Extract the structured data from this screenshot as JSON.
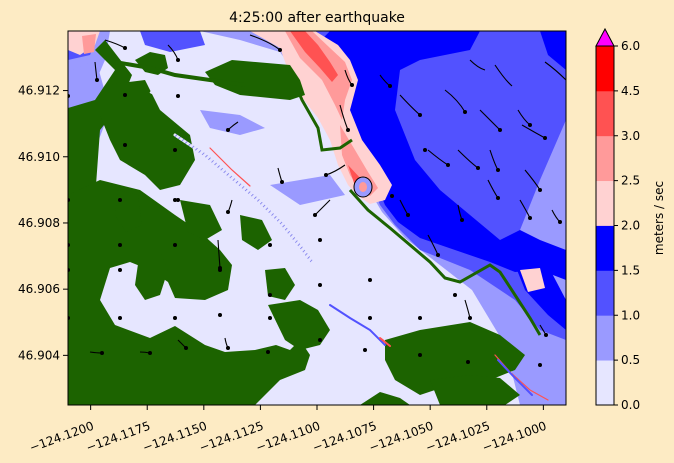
{
  "chart_data": {
    "type": "heatmap",
    "title": "4:25:00 after earthquake",
    "xlim": [
      -124.121,
      -124.099
    ],
    "ylim": [
      46.9025,
      46.9138
    ],
    "x_ticks": [
      -124.12,
      -124.1175,
      -124.115,
      -124.1125,
      -124.11,
      -124.1075,
      -124.105,
      -124.1025,
      -124.1
    ],
    "x_tick_labels": [
      "−124.1200",
      "−124.1175",
      "−124.1150",
      "−124.1125",
      "−124.1100",
      "−124.1075",
      "−124.1050",
      "−124.1025",
      "−124.1000"
    ],
    "y_ticks": [
      46.904,
      46.906,
      46.908,
      46.91,
      46.912
    ],
    "y_tick_labels": [
      "46.904",
      "46.906",
      "46.908",
      "46.910",
      "46.912"
    ],
    "colorbar": {
      "label": "meters / sec",
      "levels": [
        0.0,
        0.5,
        1.0,
        1.5,
        2.0,
        2.5,
        3.0,
        4.5,
        6.0
      ],
      "tick_labels": [
        "0.0",
        "0.5",
        "1.0",
        "1.5",
        "2.0",
        "2.5",
        "3.0",
        "4.5",
        "6.0"
      ],
      "colors": [
        "#e6e6ff",
        "#9a9aff",
        "#5252ff",
        "#0000ff",
        "#ffd2d2",
        "#ff9a9a",
        "#ff5252",
        "#ff0000"
      ],
      "extend_color": "#ff00ff"
    },
    "land_color": "#1c6300",
    "background": "#fdebc4"
  }
}
